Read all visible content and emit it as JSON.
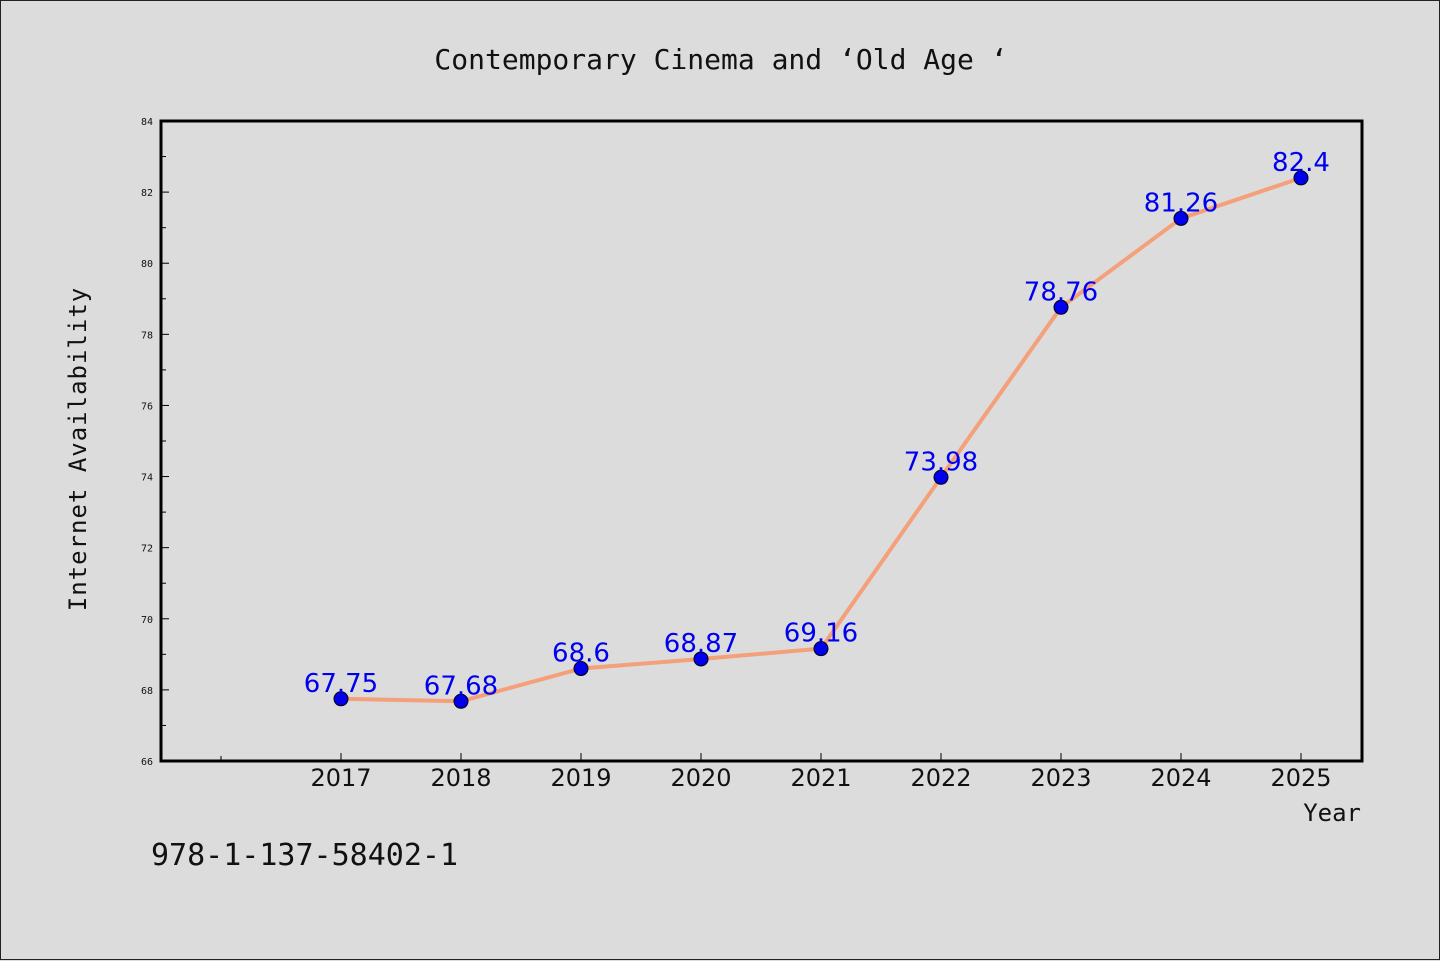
{
  "chart_data": {
    "type": "line",
    "title": "Contemporary Cinema and  ‘Old Age ‘",
    "xlabel": "Year",
    "ylabel": "Internet Availability",
    "x": [
      "2017",
      "2018",
      "2019",
      "2020",
      "2021",
      "2022",
      "2023",
      "2024",
      "2025"
    ],
    "series": [
      {
        "values": [
          67.75,
          67.68,
          68.6,
          68.87,
          69.16,
          73.98,
          78.76,
          81.26,
          82.4
        ],
        "labels": [
          "67.75",
          "67.68",
          "68.6",
          "68.87",
          "69.16",
          "73.98",
          "78.76",
          "81.26",
          "82.4"
        ],
        "line_color": "#f4a07a",
        "marker_color": "#0000ee"
      }
    ],
    "ylim": [
      66,
      84
    ],
    "yticks": [
      "66",
      "68",
      "70",
      "72",
      "74",
      "76",
      "78",
      "80",
      "82",
      "84"
    ],
    "grid": false,
    "legend": "none"
  },
  "footer": {
    "isbn": "978-1-137-58402-1"
  }
}
